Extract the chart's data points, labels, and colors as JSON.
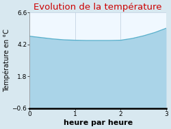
{
  "title": "Evolution de la température",
  "xlabel": "heure par heure",
  "ylabel": "Température en °C",
  "x": [
    0,
    0.25,
    0.5,
    0.75,
    1.0,
    1.25,
    1.5,
    1.75,
    2.0,
    2.25,
    2.5,
    2.75,
    3.0
  ],
  "y": [
    4.82,
    4.72,
    4.62,
    4.55,
    4.52,
    4.5,
    4.5,
    4.5,
    4.52,
    4.65,
    4.85,
    5.1,
    5.42
  ],
  "ylim": [
    -0.6,
    6.6
  ],
  "xlim": [
    0,
    3
  ],
  "yticks": [
    -0.6,
    1.8,
    4.2,
    6.6
  ],
  "xticks": [
    0,
    1,
    2,
    3
  ],
  "fill_color": "#aad4e8",
  "fill_alpha": 1.0,
  "line_color": "#5ab0cc",
  "line_width": 1.0,
  "title_color": "#cc0000",
  "title_fontsize": 9.5,
  "xlabel_fontsize": 8,
  "ylabel_fontsize": 7,
  "tick_fontsize": 6.5,
  "bg_color": "#d8e8f0",
  "plot_bg_color": "#f0f8ff",
  "grid_color": "#bbccdd"
}
